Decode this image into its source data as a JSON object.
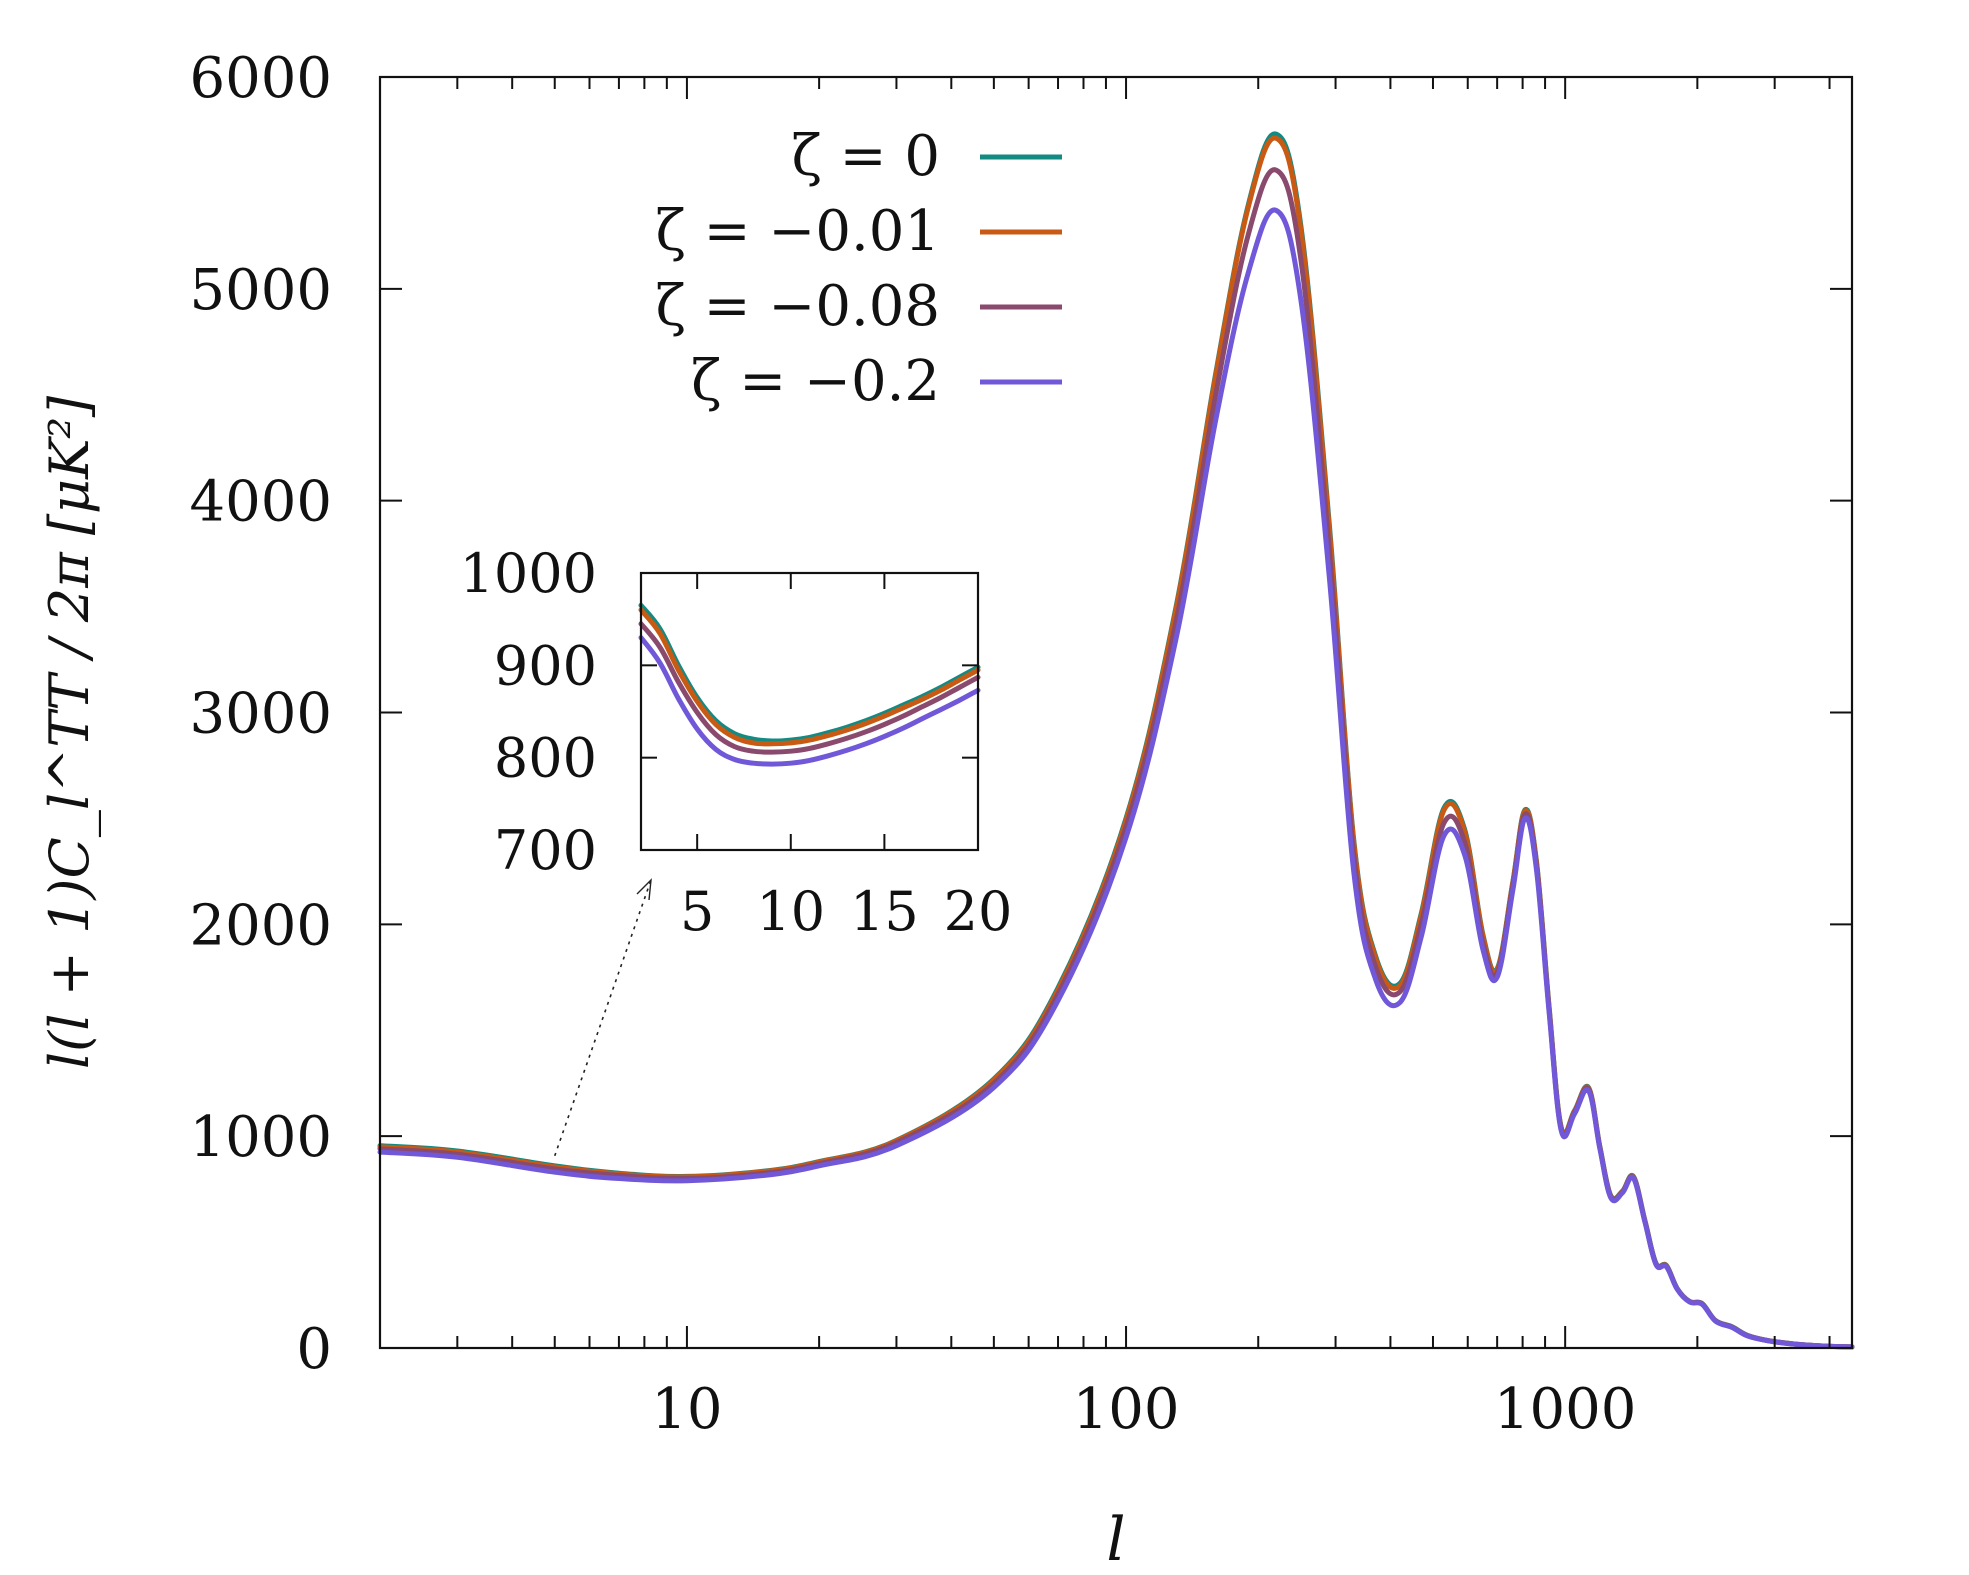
{
  "chart_data": [
    {
      "type": "line",
      "title": "",
      "xlabel": "l",
      "ylabel": "l(l + 1)C_l^TT / 2π [μK²]",
      "xscale": "log",
      "xlim": [
        2,
        4500
      ],
      "ylim": [
        0,
        6000
      ],
      "x_ticks": [
        10,
        100,
        1000
      ],
      "x_tick_labels": [
        "10",
        "100",
        "1000"
      ],
      "y_ticks": [
        0,
        1000,
        2000,
        3000,
        4000,
        5000,
        6000
      ],
      "y_tick_labels": [
        "0",
        "1000",
        "2000",
        "3000",
        "4000",
        "5000",
        "6000"
      ],
      "grid": false,
      "legend_position": "top-left",
      "x": [
        2,
        3,
        5,
        7,
        10,
        15,
        20,
        30,
        50,
        70,
        100,
        130,
        160,
        190,
        220,
        250,
        290,
        330,
        370,
        420,
        470,
        530,
        590,
        650,
        700,
        760,
        810,
        860,
        920,
        980,
        1050,
        1130,
        1200,
        1270,
        1350,
        1430,
        1520,
        1610,
        1700,
        1800,
        1920,
        2050,
        2200,
        2400,
        2600,
        2900,
        3300,
        3800,
        4500
      ],
      "series": [
        {
          "name": "ζ = 0",
          "color": "#138a82",
          "values": [
            955,
            930,
            860,
            825,
            810,
            835,
            880,
            980,
            1270,
            1700,
            2500,
            3500,
            4600,
            5400,
            5730,
            5300,
            3900,
            2400,
            1850,
            1720,
            2050,
            2550,
            2450,
            1950,
            1790,
            2200,
            2540,
            2300,
            1600,
            1040,
            1120,
            1230,
            950,
            720,
            740,
            810,
            600,
            400,
            390,
            280,
            220,
            210,
            130,
            100,
            60,
            35,
            20,
            10,
            5
          ]
        },
        {
          "name": "ζ = −0.01",
          "color": "#c85a14",
          "values": [
            950,
            925,
            855,
            822,
            808,
            833,
            878,
            978,
            1265,
            1690,
            2490,
            3490,
            4590,
            5390,
            5710,
            5280,
            3880,
            2390,
            1840,
            1710,
            2040,
            2540,
            2440,
            1945,
            1785,
            2195,
            2535,
            2295,
            1595,
            1038,
            1118,
            1228,
            948,
            718,
            738,
            808,
            598,
            398,
            388,
            279,
            219,
            209,
            129,
            99,
            59,
            35,
            20,
            10,
            5
          ]
        },
        {
          "name": "ζ = −0.08",
          "color": "#8a4a6e",
          "values": [
            940,
            915,
            845,
            815,
            800,
            825,
            870,
            970,
            1250,
            1670,
            2460,
            3430,
            4500,
            5260,
            5560,
            5140,
            3780,
            2330,
            1800,
            1680,
            2000,
            2480,
            2390,
            1910,
            1770,
            2180,
            2520,
            2280,
            1585,
            1032,
            1112,
            1222,
            944,
            714,
            735,
            805,
            596,
            396,
            386,
            278,
            218,
            208,
            128,
            98,
            58,
            34,
            19,
            10,
            5
          ]
        },
        {
          "name": "ζ = −0.2",
          "color": "#7058d8",
          "values": [
            925,
            900,
            830,
            800,
            790,
            815,
            860,
            955,
            1230,
            1640,
            2410,
            3350,
            4380,
            5080,
            5370,
            4950,
            3650,
            2250,
            1740,
            1630,
            1940,
            2420,
            2330,
            1880,
            1750,
            2160,
            2500,
            2260,
            1575,
            1025,
            1105,
            1215,
            940,
            710,
            732,
            802,
            594,
            394,
            384,
            277,
            217,
            207,
            127,
            97,
            57,
            34,
            19,
            10,
            5
          ]
        }
      ]
    },
    {
      "type": "line",
      "title": "",
      "xlim": [
        2,
        20
      ],
      "ylim": [
        700,
        1000
      ],
      "x_ticks": [
        5,
        10,
        15,
        20
      ],
      "x_tick_labels": [
        "5",
        "10",
        "15",
        "20"
      ],
      "y_ticks": [
        700,
        800,
        900,
        1000
      ],
      "y_tick_labels": [
        "700",
        "800",
        "900",
        "1000"
      ],
      "grid": false,
      "x": [
        2,
        3,
        4,
        5,
        6,
        7,
        8,
        9,
        10,
        11,
        12,
        13,
        14,
        15,
        16,
        17,
        18,
        19,
        20
      ],
      "series": [
        {
          "color": "#138a82",
          "values": [
            965,
            940,
            900,
            865,
            840,
            826,
            820,
            818,
            819,
            822,
            827,
            833,
            840,
            848,
            857,
            866,
            876,
            887,
            898
          ]
        },
        {
          "color": "#c85a14",
          "values": [
            960,
            935,
            895,
            861,
            836,
            822,
            816,
            815,
            816,
            819,
            824,
            830,
            837,
            845,
            854,
            863,
            873,
            884,
            895
          ]
        },
        {
          "color": "#8a4a6e",
          "values": [
            945,
            920,
            882,
            849,
            825,
            812,
            807,
            806,
            807,
            810,
            815,
            821,
            828,
            836,
            845,
            855,
            865,
            876,
            887
          ]
        },
        {
          "color": "#7058d8",
          "values": [
            930,
            903,
            864,
            831,
            809,
            798,
            794,
            793,
            794,
            797,
            802,
            808,
            815,
            823,
            832,
            842,
            852,
            862,
            873
          ]
        }
      ]
    }
  ]
}
